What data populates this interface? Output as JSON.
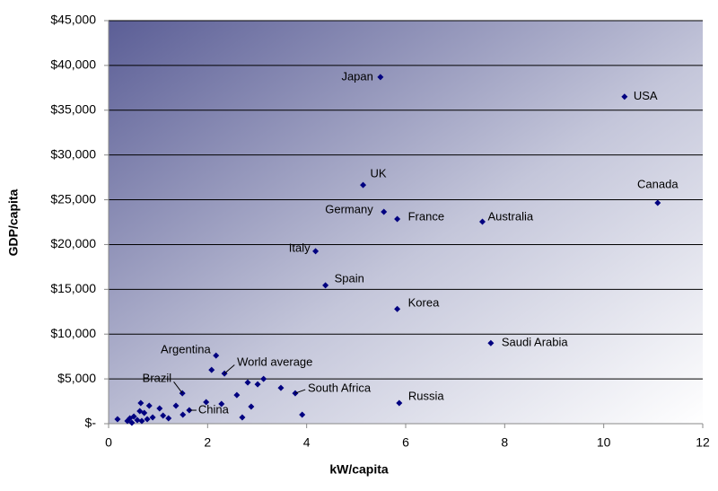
{
  "chart_data": {
    "type": "scatter",
    "x_label": "kW/capita",
    "y_label": "GDP/capita",
    "xlim": [
      0,
      12
    ],
    "xticks": [
      0,
      2,
      4,
      6,
      8,
      10,
      12
    ],
    "ylim": [
      0,
      45000
    ],
    "yticks": [
      {
        "value": 0,
        "label": "$-"
      },
      {
        "value": 5000,
        "label": "$5,000"
      },
      {
        "value": 10000,
        "label": "$10,000"
      },
      {
        "value": 15000,
        "label": "$15,000"
      },
      {
        "value": 20000,
        "label": "$20,000"
      },
      {
        "value": 25000,
        "label": "$25,000"
      },
      {
        "value": 30000,
        "label": "$30,000"
      },
      {
        "value": 35000,
        "label": "$35,000"
      },
      {
        "value": 40000,
        "label": "$40,000"
      },
      {
        "value": 45000,
        "label": "$45,000"
      }
    ],
    "grid": true,
    "series": [
      {
        "color": "#000080",
        "x": [
          5.49,
          10.42,
          5.14,
          11.09,
          5.56,
          5.83,
          7.55,
          4.18,
          4.38,
          5.83,
          7.72,
          5.87,
          2.17,
          2.34,
          1.49,
          1.63,
          3.77,
          0.18,
          0.38,
          0.43,
          0.47,
          0.51,
          0.58,
          0.63,
          0.67,
          0.72,
          0.78,
          0.65,
          0.82,
          0.89,
          1.03,
          1.1,
          1.21,
          1.36,
          1.5,
          1.97,
          2.08,
          2.28,
          2.59,
          2.7,
          2.81,
          2.88,
          3.01,
          3.13,
          3.48,
          3.91
        ],
        "values": [
          38700,
          36500,
          26650,
          24650,
          23650,
          22850,
          22550,
          19250,
          15450,
          12800,
          9000,
          2300,
          7600,
          5600,
          3400,
          1500,
          3400,
          500,
          300,
          600,
          100,
          800,
          400,
          1400,
          300,
          1200,
          500,
          2300,
          2000,
          700,
          1700,
          900,
          600,
          2000,
          1000,
          2400,
          6000,
          2200,
          3200,
          700,
          4600,
          1900,
          4400,
          5000,
          4000,
          1000
        ],
        "labels": [
          "Japan",
          "USA",
          "UK",
          "Canada",
          "Germany",
          "France",
          "Australia",
          "Italy",
          "Spain",
          "Korea",
          "Saudi Arabia",
          "Russia",
          "Argentina",
          "World average",
          "Brazil",
          "China",
          "South Africa",
          null,
          null,
          null,
          null,
          null,
          null,
          null,
          null,
          null,
          null,
          null,
          null,
          null,
          null,
          null,
          null,
          null,
          null,
          null,
          null,
          null,
          null,
          null,
          null,
          null,
          null,
          null,
          null,
          null
        ]
      }
    ]
  }
}
